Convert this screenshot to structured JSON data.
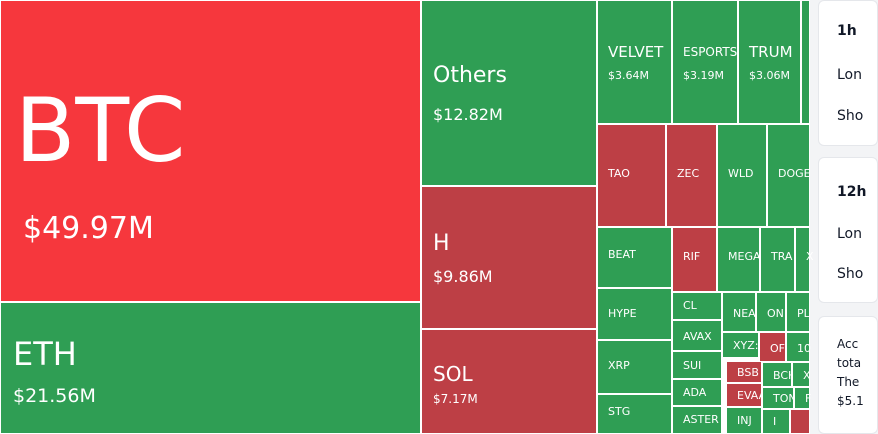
{
  "colors": {
    "green": "#2f9e54",
    "red": "#bd3f45",
    "bright_red": "#f6373d"
  },
  "treemap": {
    "cells": [
      {
        "id": "btc",
        "symbol": "BTC",
        "value": "$49.97M",
        "color": "bright_red"
      },
      {
        "id": "eth",
        "symbol": "ETH",
        "value": "$21.56M",
        "color": "green"
      },
      {
        "id": "others",
        "symbol": "Others",
        "value": "$12.82M",
        "color": "green"
      },
      {
        "id": "h",
        "symbol": "H",
        "value": "$9.86M",
        "color": "red"
      },
      {
        "id": "sol",
        "symbol": "SOL",
        "value": "$7.17M",
        "color": "red"
      },
      {
        "id": "velvet",
        "symbol": "VELVET",
        "value": "$3.64M",
        "color": "green"
      },
      {
        "id": "esports",
        "symbol": "ESPORTS",
        "value": "$3.19M",
        "color": "green"
      },
      {
        "id": "trump",
        "symbol": "TRUM",
        "value": "$3.06M",
        "color": "green"
      },
      {
        "id": "tao",
        "symbol": "TAO",
        "value": "",
        "color": "red"
      },
      {
        "id": "zec",
        "symbol": "ZEC",
        "value": "",
        "color": "red"
      },
      {
        "id": "wld",
        "symbol": "WLD",
        "value": "",
        "color": "green"
      },
      {
        "id": "doge",
        "symbol": "DOGE",
        "value": "",
        "color": "green"
      },
      {
        "id": "beat",
        "symbol": "BEAT",
        "value": "",
        "color": "green"
      },
      {
        "id": "rif",
        "symbol": "RIF",
        "value": "",
        "color": "red"
      },
      {
        "id": "mega",
        "symbol": "MEGA",
        "value": "",
        "color": "green"
      },
      {
        "id": "tra",
        "symbol": "TRA",
        "value": "",
        "color": "green"
      },
      {
        "id": "x1",
        "symbol": "X",
        "value": "",
        "color": "green"
      },
      {
        "id": "hype",
        "symbol": "HYPE",
        "value": "",
        "color": "green"
      },
      {
        "id": "cl",
        "symbol": "CL",
        "value": "",
        "color": "green"
      },
      {
        "id": "near",
        "symbol": "NEA",
        "value": "",
        "color": "green"
      },
      {
        "id": "ondo",
        "symbol": "ON",
        "value": "",
        "color": "green"
      },
      {
        "id": "pl",
        "symbol": "PL",
        "value": "",
        "color": "green"
      },
      {
        "id": "avax",
        "symbol": "AVAX",
        "value": "",
        "color": "green"
      },
      {
        "id": "xyz",
        "symbol": "XYZ:",
        "value": "",
        "color": "green"
      },
      {
        "id": "of",
        "symbol": "OF",
        "value": "",
        "color": "red"
      },
      {
        "id": "ten",
        "symbol": "10",
        "value": "",
        "color": "green"
      },
      {
        "id": "xrp",
        "symbol": "XRP",
        "value": "",
        "color": "green"
      },
      {
        "id": "sui",
        "symbol": "SUI",
        "value": "",
        "color": "green"
      },
      {
        "id": "bsb",
        "symbol": "BSB",
        "value": "",
        "color": "red"
      },
      {
        "id": "bch",
        "symbol": "BCH",
        "value": "",
        "color": "green"
      },
      {
        "id": "x2",
        "symbol": "X",
        "value": "",
        "color": "green"
      },
      {
        "id": "ada",
        "symbol": "ADA",
        "value": "",
        "color": "green"
      },
      {
        "id": "evaa",
        "symbol": "EVAA",
        "value": "",
        "color": "red"
      },
      {
        "id": "ton",
        "symbol": "TON",
        "value": "",
        "color": "green"
      },
      {
        "id": "f",
        "symbol": "F",
        "value": "",
        "color": "green"
      },
      {
        "id": "stg",
        "symbol": "STG",
        "value": "",
        "color": "green"
      },
      {
        "id": "aster",
        "symbol": "ASTER",
        "value": "",
        "color": "green"
      },
      {
        "id": "inj",
        "symbol": "INJ",
        "value": "",
        "color": "green"
      },
      {
        "id": "i1",
        "symbol": "I",
        "value": "",
        "color": "green"
      },
      {
        "id": "red_small",
        "symbol": "",
        "value": "",
        "color": "red"
      }
    ]
  },
  "side": {
    "card1": {
      "title": "1h",
      "row1": "Lon",
      "row2": "Sho"
    },
    "card2": {
      "title": "12h",
      "row1": "Lon",
      "row2": "Sho"
    },
    "note": "Acc\ntota\nThe\n$5.1"
  }
}
